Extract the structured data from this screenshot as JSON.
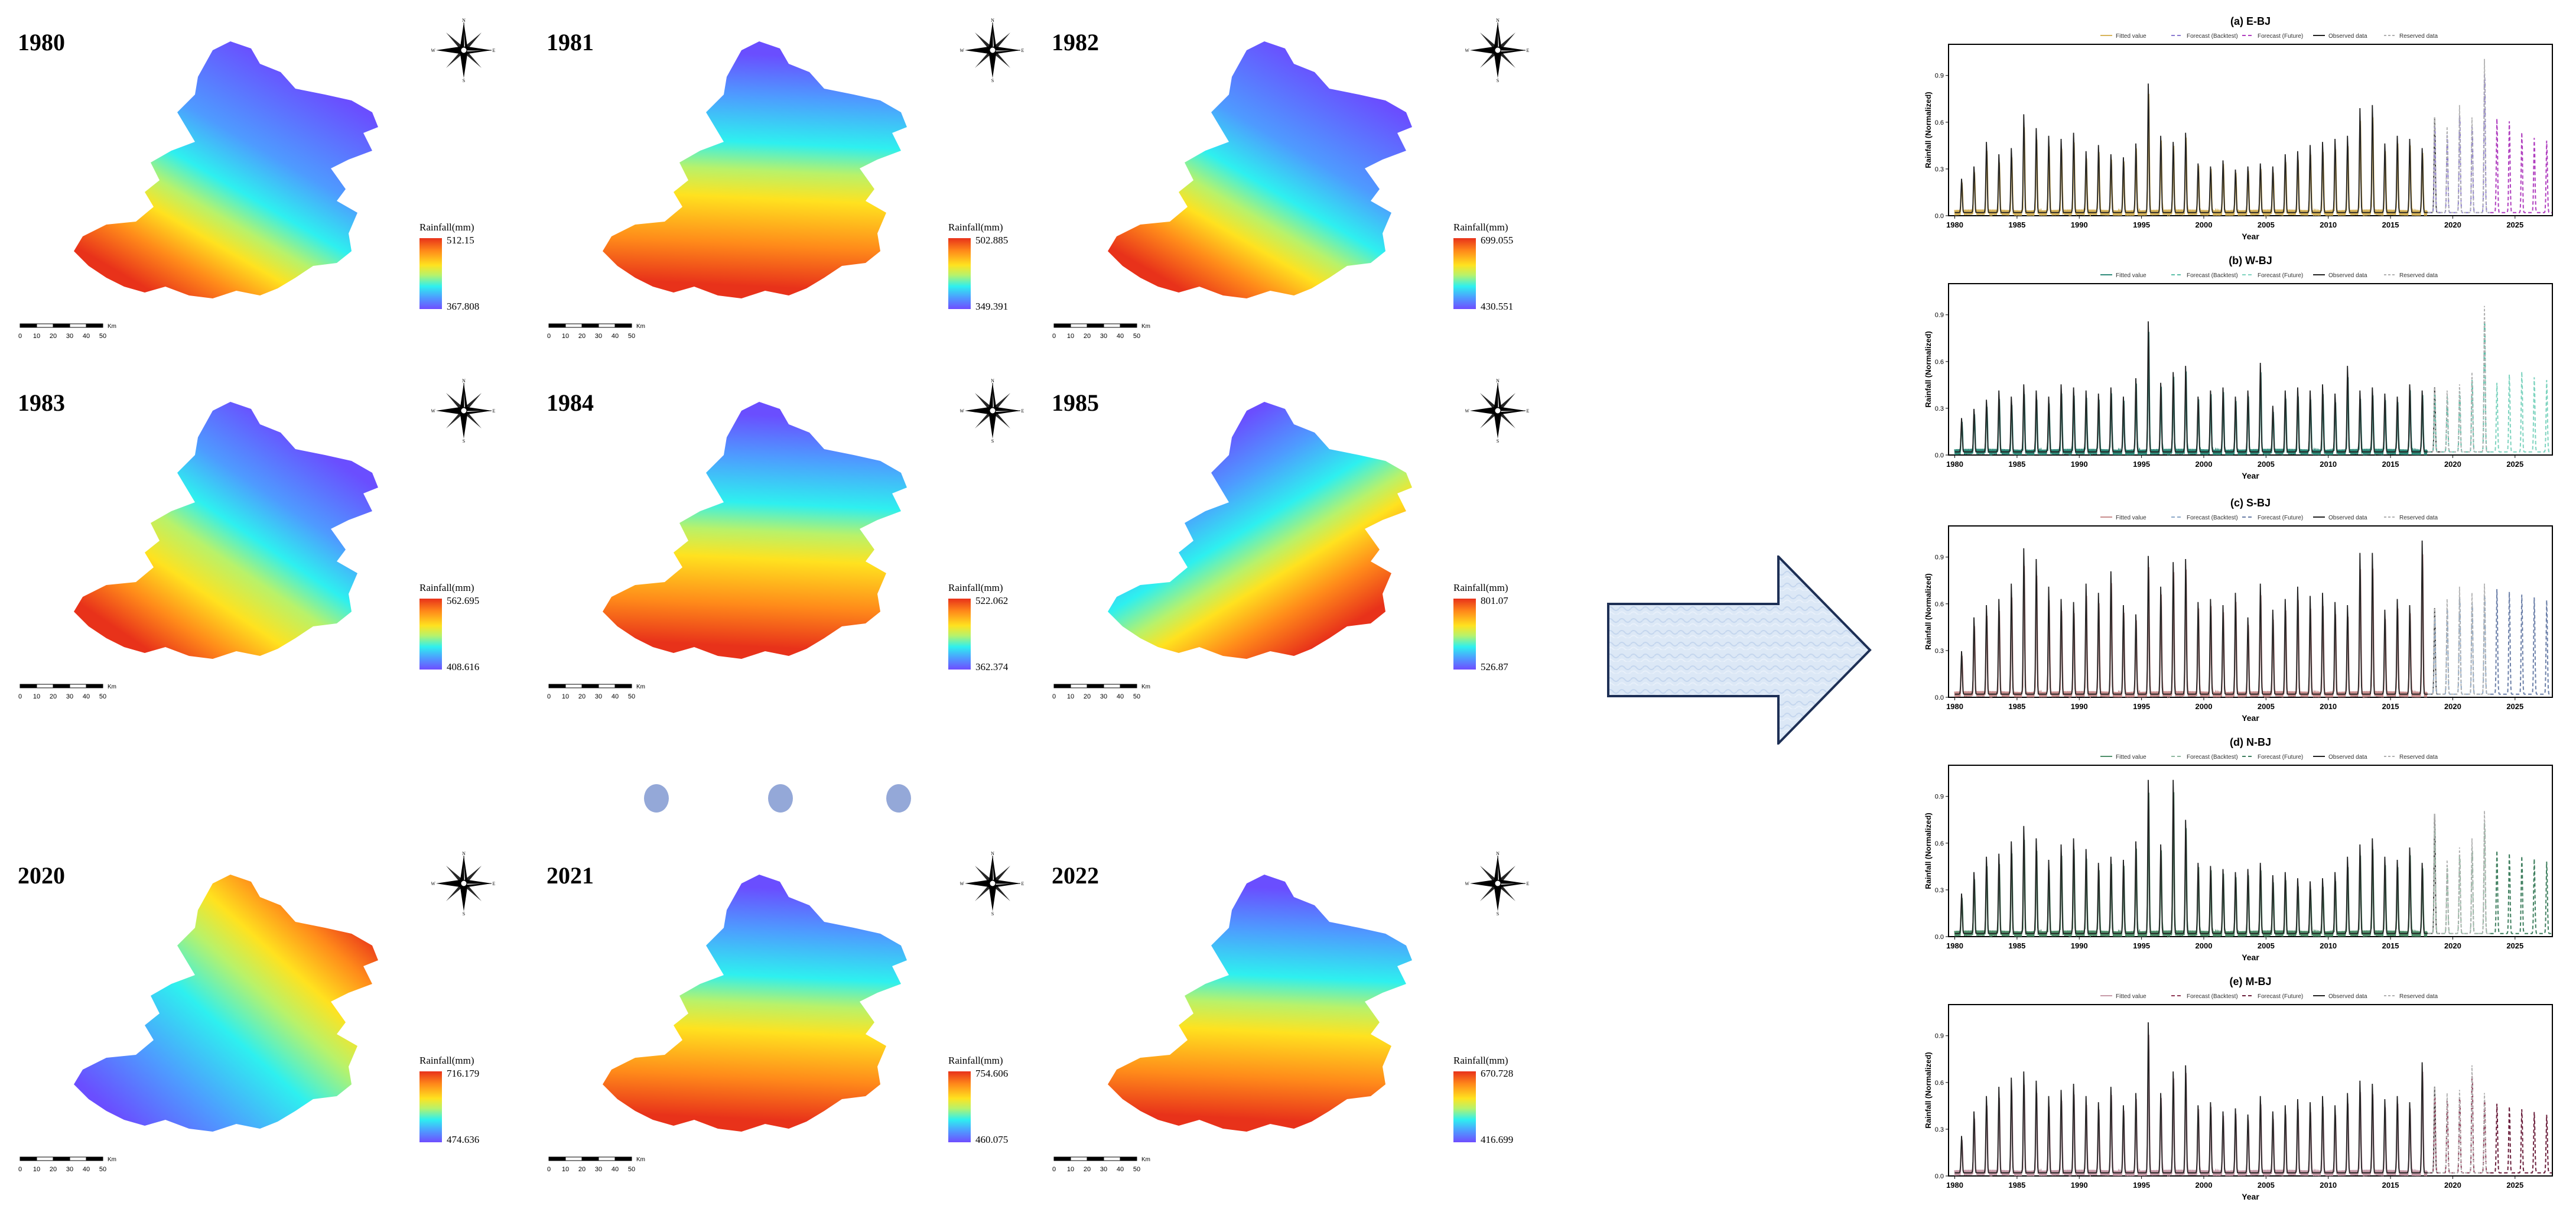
{
  "maps": [
    {
      "year": "1980",
      "legend_title": "Rainfall(mm)",
      "max": "512.15",
      "min": "367.808",
      "pattern": "southwest"
    },
    {
      "year": "1981",
      "legend_title": "Rainfall(mm)",
      "max": "502.885",
      "min": "349.391",
      "pattern": "south"
    },
    {
      "year": "1982",
      "legend_title": "Rainfall(mm)",
      "max": "699.055",
      "min": "430.551",
      "pattern": "southwest"
    },
    {
      "year": "1983",
      "legend_title": "Rainfall(mm)",
      "max": "562.695",
      "min": "408.616",
      "pattern": "west"
    },
    {
      "year": "1984",
      "legend_title": "Rainfall(mm)",
      "max": "522.062",
      "min": "362.374",
      "pattern": "south"
    },
    {
      "year": "1985",
      "legend_title": "Rainfall(mm)",
      "max": "801.07",
      "min": "526.87",
      "pattern": "southeast"
    },
    {
      "year": "2020",
      "legend_title": "Rainfall(mm)",
      "max": "716.179",
      "min": "474.636",
      "pattern": "northeast"
    },
    {
      "year": "2021",
      "legend_title": "Rainfall(mm)",
      "max": "754.606",
      "min": "460.075",
      "pattern": "south"
    },
    {
      "year": "2022",
      "legend_title": "Rainfall(mm)",
      "max": "670.728",
      "min": "416.699",
      "pattern": "south"
    }
  ],
  "scalebar": {
    "ticks": [
      "0",
      "10",
      "20",
      "30",
      "40",
      "50"
    ],
    "unit": "Km"
  },
  "compass_letters": {
    "n": "N",
    "e": "E",
    "s": "S",
    "w": "W"
  },
  "legend_items": [
    "Fitted value",
    "Forecast (Backtest)",
    "Forecast (Future)",
    "Observed data",
    "Reserved data"
  ],
  "chart_data": [
    {
      "type": "line",
      "title": "(a) E-BJ",
      "xlabel": "Year",
      "ylabel": "Rainfall (Normalized)",
      "xlim": [
        1979.5,
        2028
      ],
      "ylim": [
        0,
        1.1
      ],
      "yticks": [
        "0.0",
        "0.3",
        "0.6",
        "0.9"
      ],
      "xticks": [
        "1980",
        "1985",
        "1990",
        "1995",
        "2000",
        "2005",
        "2010",
        "2015",
        "2020",
        "2025"
      ],
      "colors": {
        "fitted": "#d7b45a",
        "backtest": "#8b7bd0",
        "future": "#b03fbf",
        "observed": "#222222",
        "reserved": "#b0b0b0"
      },
      "peaks": [
        0.22,
        0.3,
        0.46,
        0.38,
        0.42,
        0.64,
        0.55,
        0.5,
        0.48,
        0.52,
        0.4,
        0.44,
        0.38,
        0.36,
        0.45,
        0.84,
        0.5,
        0.46,
        0.52,
        0.32,
        0.3,
        0.34,
        0.28,
        0.3,
        0.32,
        0.3,
        0.38,
        0.4,
        0.44,
        0.46,
        0.48,
        0.5,
        0.68,
        0.7,
        0.45,
        0.5,
        0.48,
        0.42,
        0.62,
        0.56,
        0.7,
        0.62,
        1.0,
        0.68,
        0.66,
        0.58,
        0.54,
        0.52
      ]
    },
    {
      "type": "line",
      "title": "(b) W-BJ",
      "xlabel": "Year",
      "ylabel": "Rainfall (Normalized)",
      "xlim": [
        1979.5,
        2028
      ],
      "ylim": [
        0,
        1.1
      ],
      "yticks": [
        "0.0",
        "0.3",
        "0.6",
        "0.9"
      ],
      "xticks": [
        "1980",
        "1985",
        "1990",
        "1995",
        "2000",
        "2005",
        "2010",
        "2015",
        "2020",
        "2025"
      ],
      "colors": {
        "fitted": "#2e8b7a",
        "backtest": "#5cbfa8",
        "future": "#7fd4c0",
        "observed": "#222222",
        "reserved": "#b0b0b0"
      },
      "peaks": [
        0.22,
        0.28,
        0.34,
        0.4,
        0.36,
        0.44,
        0.4,
        0.36,
        0.44,
        0.42,
        0.4,
        0.38,
        0.42,
        0.36,
        0.48,
        0.85,
        0.45,
        0.52,
        0.56,
        0.36,
        0.4,
        0.42,
        0.36,
        0.4,
        0.58,
        0.3,
        0.4,
        0.42,
        0.4,
        0.44,
        0.38,
        0.56,
        0.4,
        0.42,
        0.38,
        0.36,
        0.44,
        0.4,
        0.42,
        0.4,
        0.44,
        0.52,
        0.95,
        0.5,
        0.56,
        0.58,
        0.54,
        0.52
      ]
    },
    {
      "type": "line",
      "title": "(c) S-BJ",
      "xlabel": "Year",
      "ylabel": "Rainfall (Normalized)",
      "xlim": [
        1979.5,
        2028
      ],
      "ylim": [
        0,
        1.1
      ],
      "yticks": [
        "0.0",
        "0.3",
        "0.6",
        "0.9"
      ],
      "xticks": [
        "1980",
        "1985",
        "1990",
        "1995",
        "2000",
        "2005",
        "2010",
        "2015",
        "2020",
        "2025"
      ],
      "colors": {
        "fitted": "#c88d8d",
        "backtest": "#8da9c8",
        "future": "#6b7fa8",
        "observed": "#222222",
        "reserved": "#b0b0b0"
      },
      "peaks": [
        0.28,
        0.5,
        0.58,
        0.62,
        0.72,
        0.95,
        0.88,
        0.7,
        0.62,
        0.6,
        0.72,
        0.66,
        0.8,
        0.58,
        0.52,
        0.9,
        0.7,
        0.86,
        0.88,
        0.6,
        0.62,
        0.58,
        0.66,
        0.5,
        0.72,
        0.55,
        0.62,
        0.7,
        0.64,
        0.66,
        0.6,
        0.58,
        0.92,
        0.92,
        0.55,
        0.62,
        0.58,
        1.0,
        0.56,
        0.62,
        0.7,
        0.66,
        0.72,
        0.76,
        0.74,
        0.72,
        0.7,
        0.68
      ]
    },
    {
      "type": "line",
      "title": "(d) N-BJ",
      "xlabel": "Year",
      "ylabel": "Rainfall (Normalized)",
      "xlim": [
        1979.5,
        2028
      ],
      "ylim": [
        0,
        1.1
      ],
      "yticks": [
        "0.0",
        "0.3",
        "0.6",
        "0.9"
      ],
      "xticks": [
        "1980",
        "1985",
        "1990",
        "1995",
        "2000",
        "2005",
        "2010",
        "2015",
        "2020",
        "2025"
      ],
      "colors": {
        "fitted": "#4f8f6a",
        "backtest": "#8fb8a0",
        "future": "#3f7f5f",
        "observed": "#222222",
        "reserved": "#b0b0b0"
      },
      "peaks": [
        0.26,
        0.4,
        0.5,
        0.52,
        0.6,
        0.7,
        0.62,
        0.48,
        0.58,
        0.62,
        0.55,
        0.46,
        0.5,
        0.48,
        0.6,
        1.0,
        0.58,
        1.0,
        0.74,
        0.46,
        0.44,
        0.42,
        0.4,
        0.42,
        0.46,
        0.38,
        0.4,
        0.36,
        0.34,
        0.36,
        0.4,
        0.5,
        0.58,
        0.62,
        0.5,
        0.48,
        0.56,
        0.46,
        0.78,
        0.48,
        0.56,
        0.62,
        0.8,
        0.6,
        0.58,
        0.56,
        0.54,
        0.52
      ]
    },
    {
      "type": "line",
      "title": "(e) M-BJ",
      "xlabel": "Year",
      "ylabel": "Rainfall (Normalized)",
      "xlim": [
        1979.5,
        2028
      ],
      "ylim": [
        0,
        1.1
      ],
      "yticks": [
        "0.0",
        "0.3",
        "0.6",
        "0.9"
      ],
      "xticks": [
        "1980",
        "1985",
        "1990",
        "1995",
        "2000",
        "2005",
        "2010",
        "2015",
        "2020",
        "2025"
      ],
      "colors": {
        "fitted": "#c79aa8",
        "backtest": "#8f3a56",
        "future": "#6a1f3c",
        "observed": "#222222",
        "reserved": "#b0b0b0"
      },
      "peaks": [
        0.24,
        0.4,
        0.5,
        0.56,
        0.62,
        0.66,
        0.6,
        0.5,
        0.54,
        0.58,
        0.5,
        0.46,
        0.56,
        0.44,
        0.52,
        0.98,
        0.52,
        0.66,
        0.7,
        0.44,
        0.46,
        0.4,
        0.42,
        0.38,
        0.5,
        0.4,
        0.44,
        0.48,
        0.46,
        0.5,
        0.44,
        0.52,
        0.6,
        0.58,
        0.48,
        0.5,
        0.46,
        0.72,
        0.56,
        0.52,
        0.54,
        0.7,
        0.52,
        0.5,
        0.48,
        0.46,
        0.44,
        0.42
      ]
    }
  ]
}
